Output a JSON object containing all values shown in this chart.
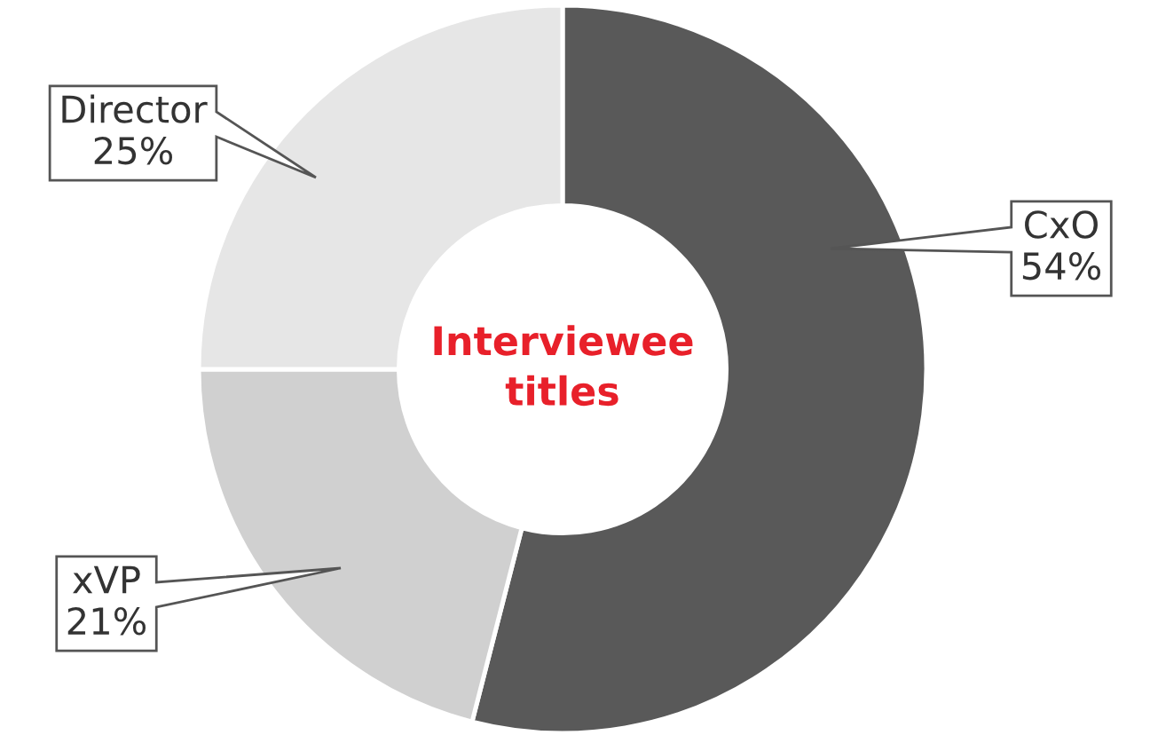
{
  "chart_data": {
    "type": "donut",
    "title": "Interviewee titles",
    "categories": [
      "CxO",
      "xVP",
      "Director"
    ],
    "values": [
      54,
      21,
      25
    ],
    "value_labels": [
      "54%",
      "21%",
      "25%"
    ],
    "colors": [
      "#595959",
      "#d0d0d0",
      "#e6e6e6"
    ]
  }
}
